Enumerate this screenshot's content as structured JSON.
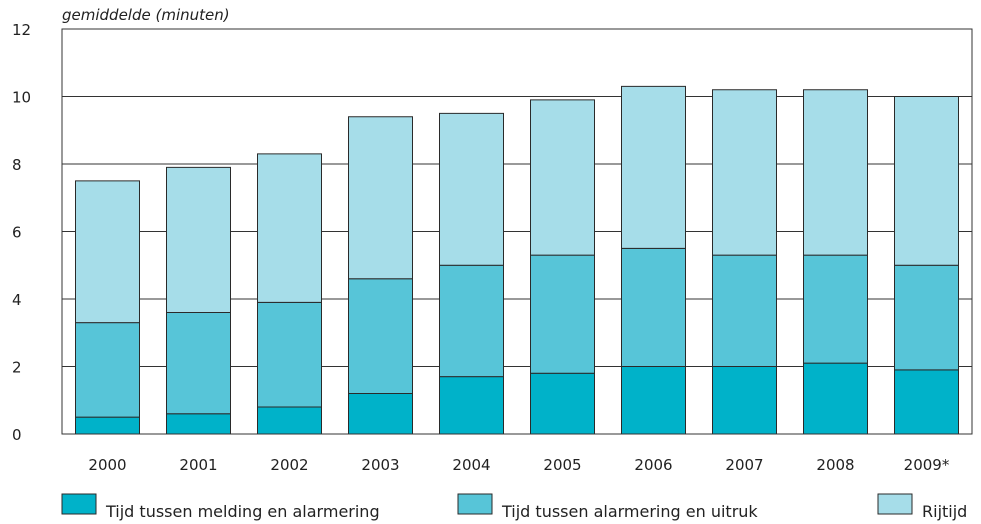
{
  "chart_data": {
    "type": "bar",
    "stacked": true,
    "ylabel": "gemiddelde (minuten)",
    "ylim": [
      0,
      12
    ],
    "yticks": [
      0,
      2,
      4,
      6,
      8,
      10,
      12
    ],
    "grid": "horizontal",
    "legend_position": "bottom",
    "categories": [
      "2000",
      "2001",
      "2002",
      "2003",
      "2004",
      "2005",
      "2006",
      "2007",
      "2008",
      "2009*"
    ],
    "series": [
      {
        "name": "Tijd tussen melding en alarmering",
        "color": "#00b2c9",
        "values": [
          0.5,
          0.6,
          0.8,
          1.2,
          1.7,
          1.8,
          2.0,
          2.0,
          2.1,
          1.9
        ]
      },
      {
        "name": "Tijd tussen alarmering en uitruk",
        "color": "#57c5d8",
        "values": [
          2.8,
          3.0,
          3.1,
          3.4,
          3.3,
          3.5,
          3.5,
          3.3,
          3.2,
          3.1
        ]
      },
      {
        "name": "Rijtijd",
        "color": "#a6dde9",
        "values": [
          4.2,
          4.3,
          4.4,
          4.8,
          4.5,
          4.6,
          4.8,
          4.9,
          4.9,
          5.0
        ]
      }
    ]
  }
}
